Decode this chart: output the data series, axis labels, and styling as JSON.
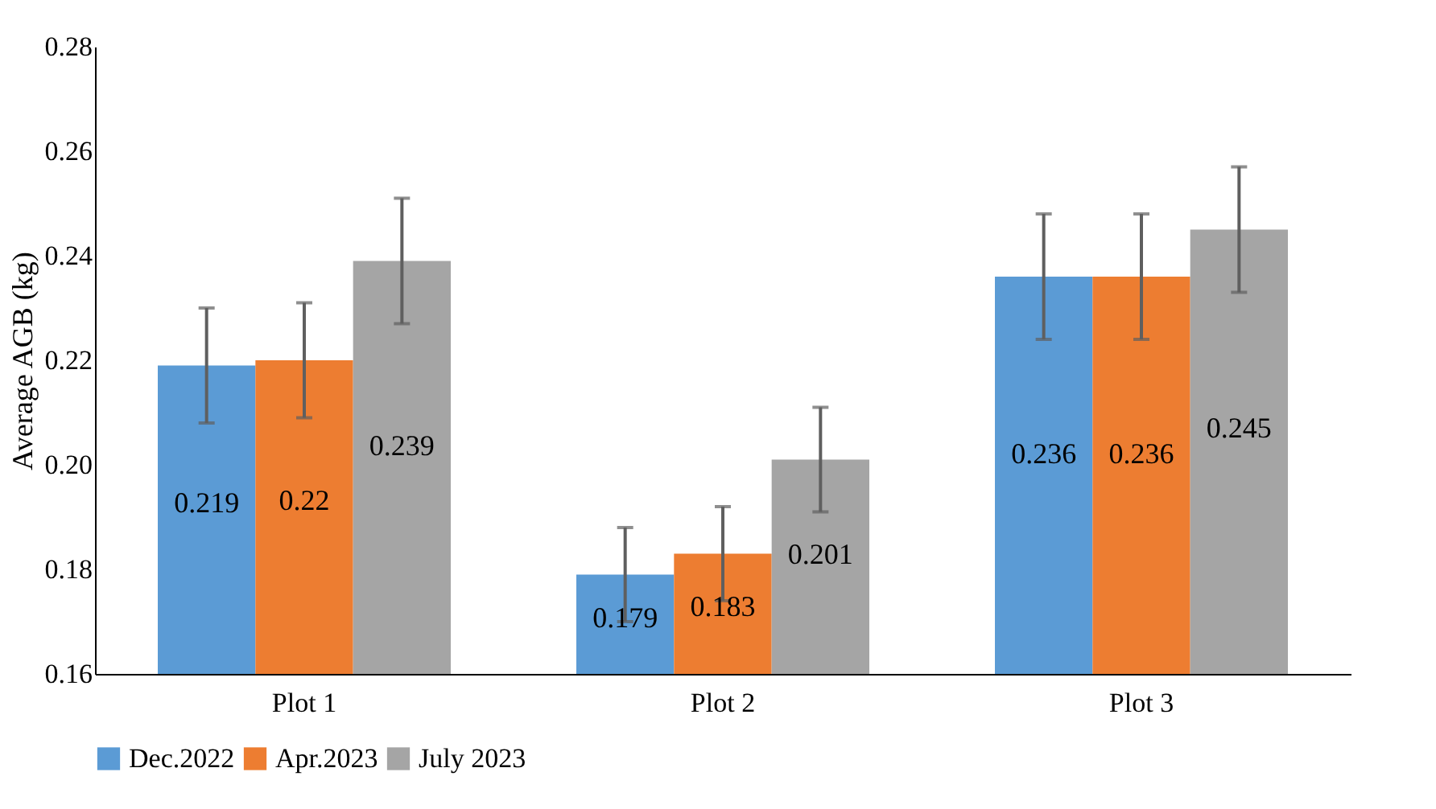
{
  "chart_data": {
    "type": "bar",
    "ylabel": "Average AGB (kg)",
    "categories": [
      "Plot 1",
      "Plot 2",
      "Plot 3"
    ],
    "series": [
      {
        "name": "Dec.2022",
        "color": "#5b9bd5",
        "values": [
          0.219,
          0.179,
          0.236
        ],
        "errors": [
          0.011,
          0.009,
          0.012
        ]
      },
      {
        "name": "Apr.2023",
        "color": "#ed7d31",
        "values": [
          0.22,
          0.183,
          0.236
        ],
        "errors": [
          0.011,
          0.009,
          0.012
        ]
      },
      {
        "name": "July 2023",
        "color": "#a5a5a5",
        "values": [
          0.239,
          0.201,
          0.245
        ],
        "errors": [
          0.012,
          0.01,
          0.012
        ]
      }
    ],
    "ylim": [
      0.16,
      0.28
    ],
    "yticks": [
      0.16,
      0.18,
      {
        "value": 0.2,
        "label": "0.20"
      },
      0.22,
      0.24,
      0.26,
      0.28
    ],
    "data_labels": true,
    "grid": false,
    "legend": "bottom"
  }
}
